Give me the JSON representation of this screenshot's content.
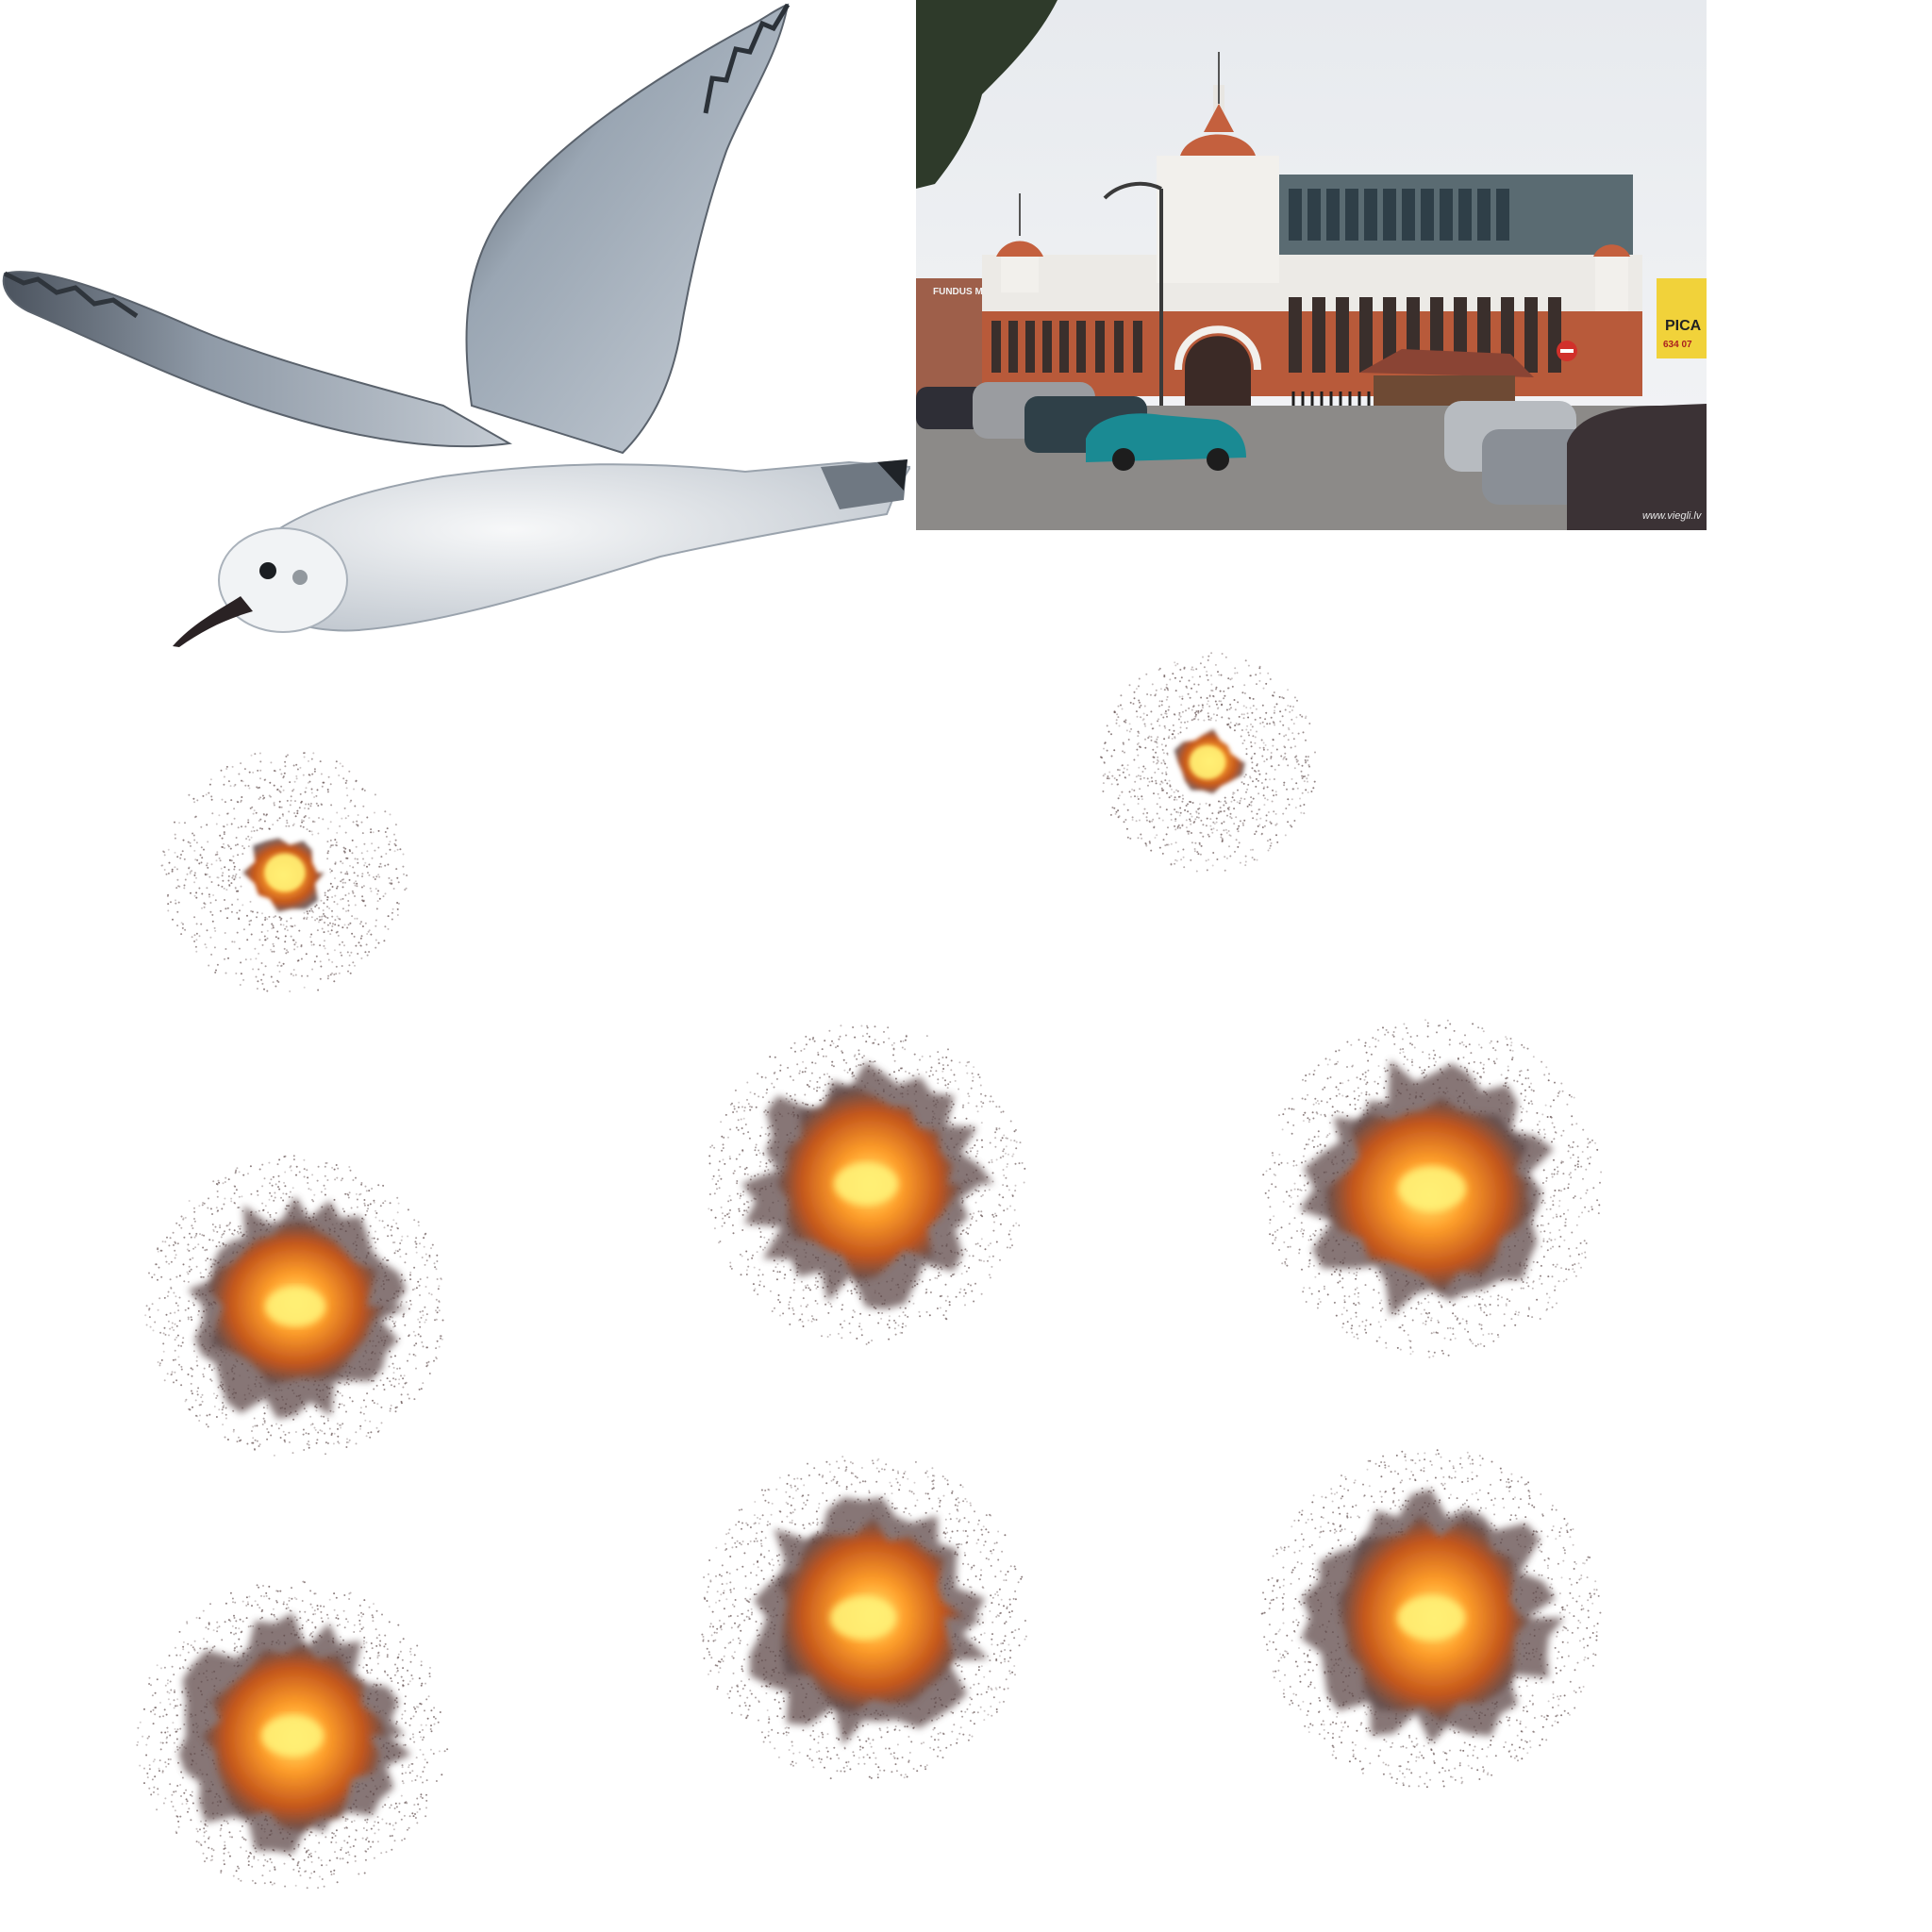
{
  "sprites": {
    "gull": {
      "name": "seagull-sprite"
    },
    "photo": {
      "name": "market-building-photo",
      "sign_line_1": "PICA",
      "sign_line_2": "634 07",
      "watermark": "www.viegli.lv",
      "left_sign": "FUNDUS MA"
    },
    "explosions": [
      {
        "id": "exp-1",
        "frame": 1,
        "stage": "small"
      },
      {
        "id": "exp-2",
        "frame": 2,
        "stage": "small"
      },
      {
        "id": "exp-3",
        "frame": 3,
        "stage": "large"
      },
      {
        "id": "exp-4",
        "frame": 4,
        "stage": "large"
      },
      {
        "id": "exp-5",
        "frame": 5,
        "stage": "large"
      },
      {
        "id": "exp-6",
        "frame": 6,
        "stage": "large"
      },
      {
        "id": "exp-7",
        "frame": 7,
        "stage": "large"
      },
      {
        "id": "exp-8",
        "frame": 8,
        "stage": "large"
      }
    ]
  },
  "colors": {
    "background": "#ffffff",
    "fire_core": "#fff176",
    "fire_mid": "#ff9f2a",
    "fire_outer": "#c2541c",
    "smoke": "#5e4a4a",
    "gull_wing": "#8e9aa8",
    "gull_body": "#e9ecef",
    "brick": "#b85a3a"
  }
}
